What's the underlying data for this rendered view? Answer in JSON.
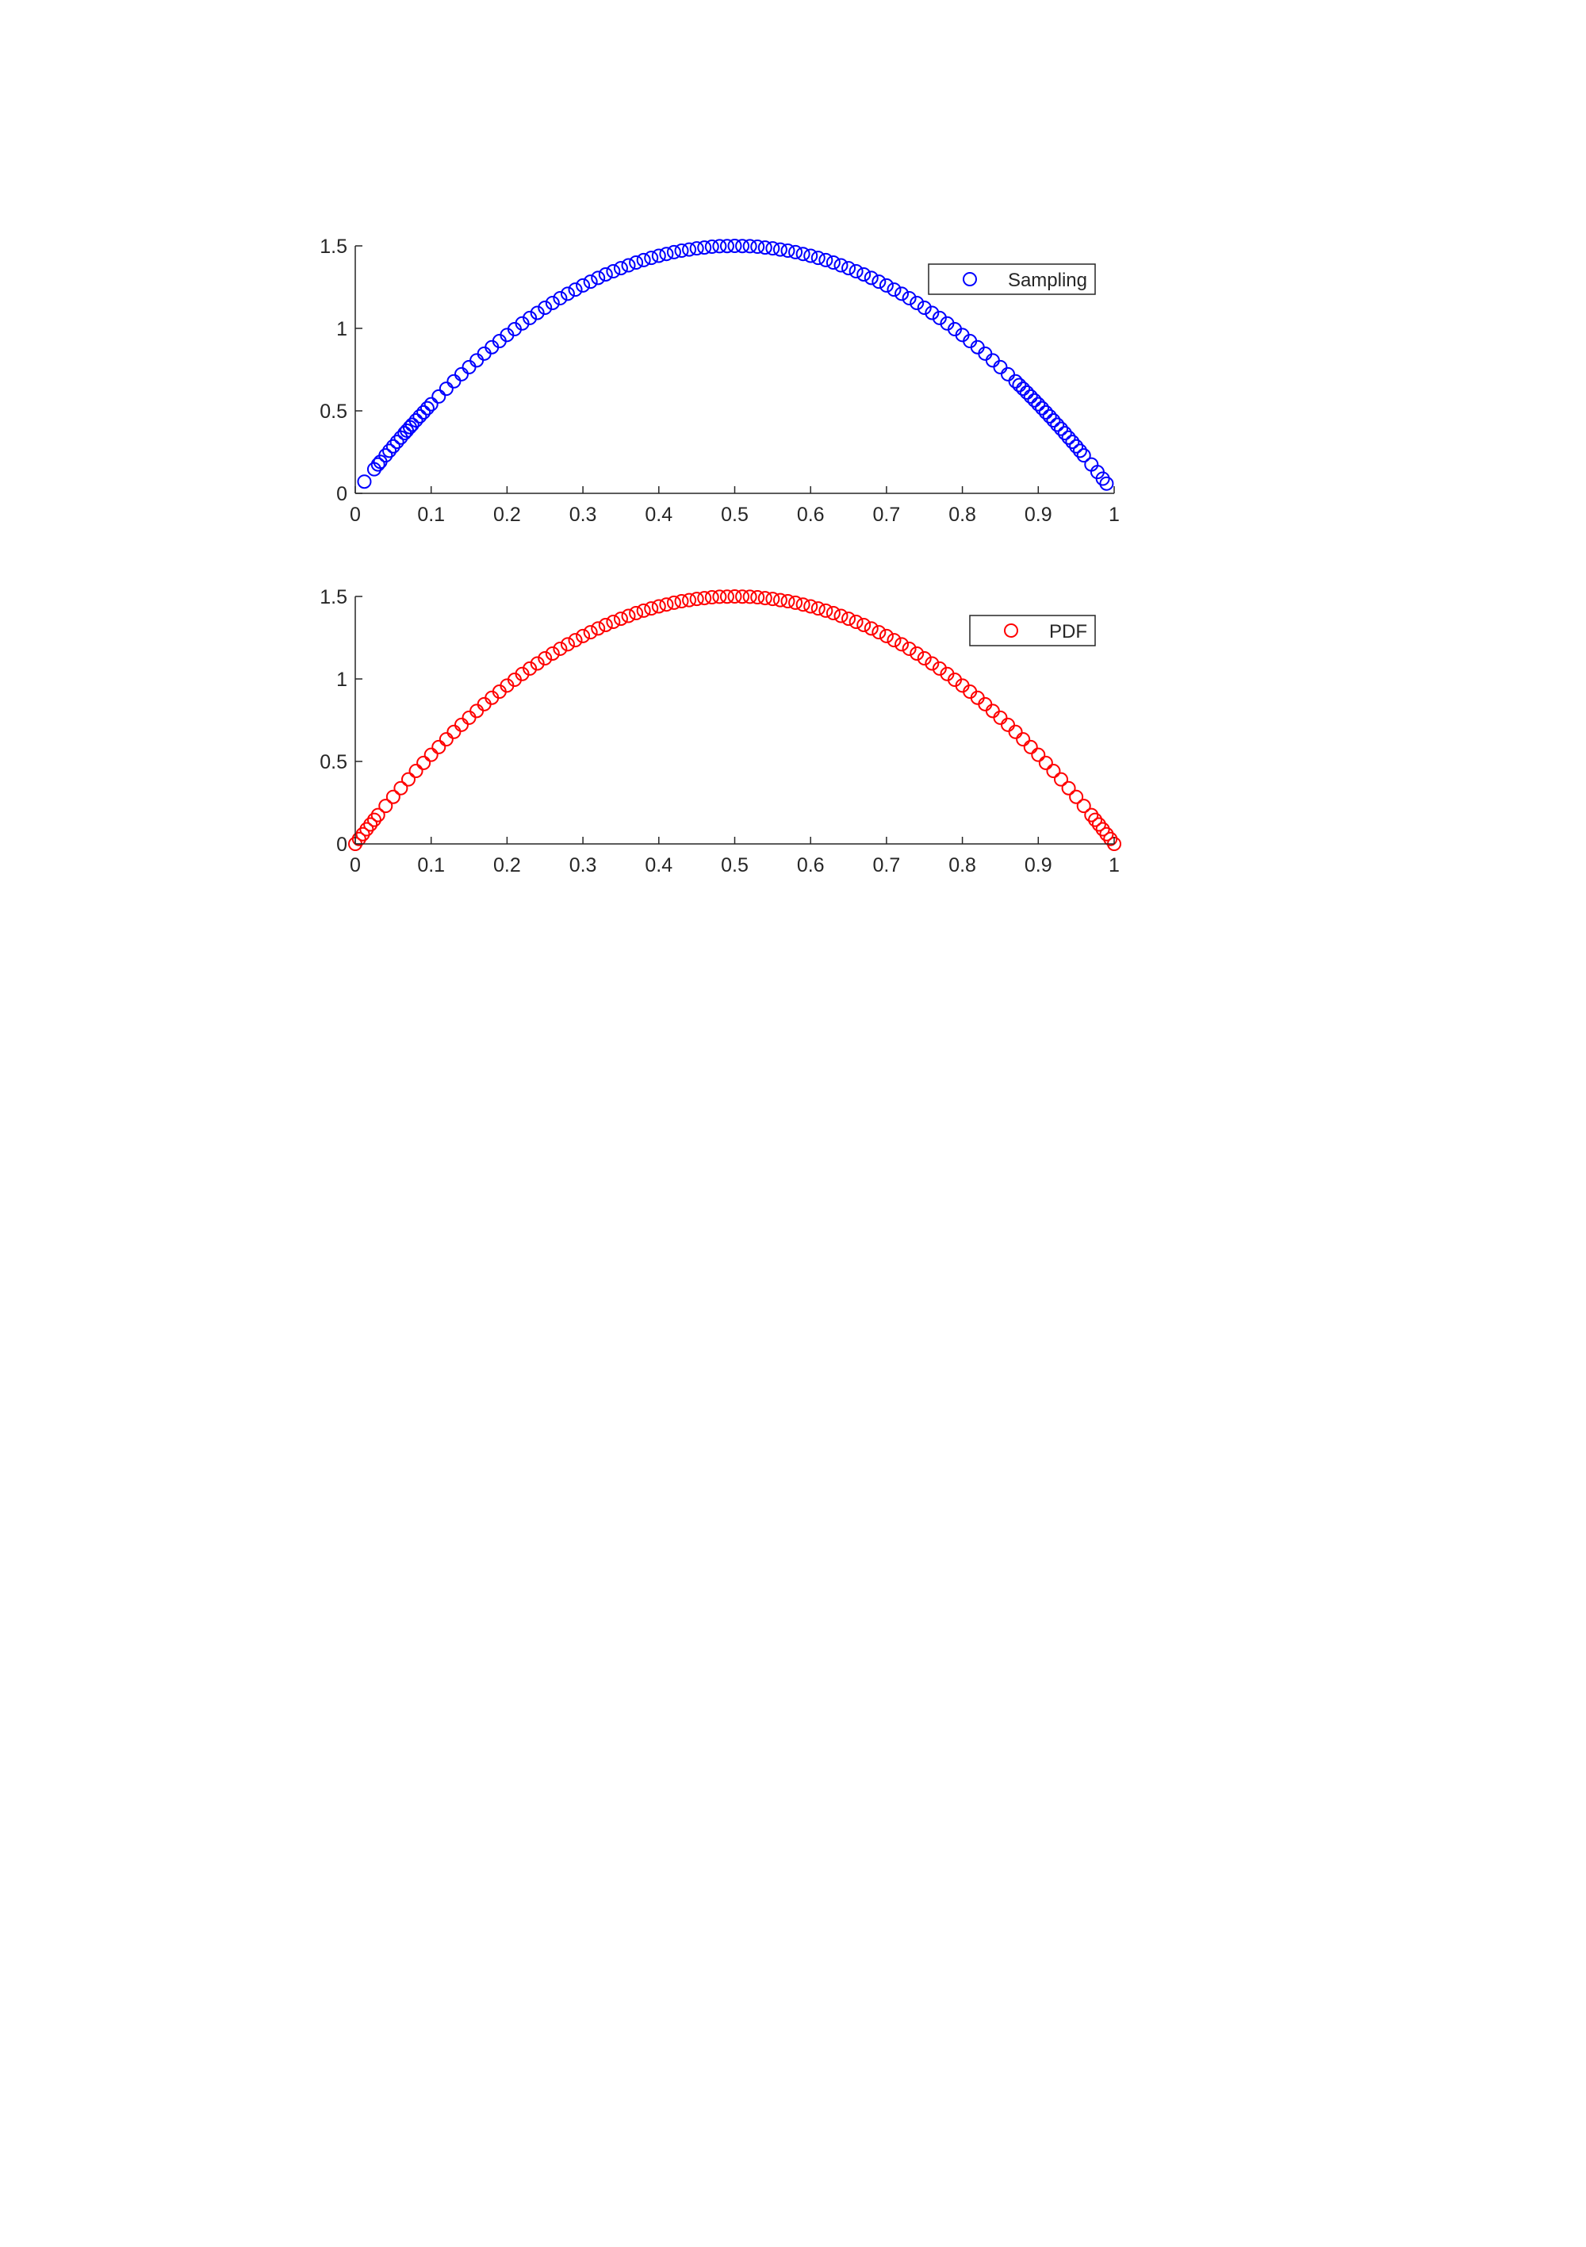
{
  "chart_data": [
    {
      "type": "scatter",
      "title": "",
      "xlabel": "",
      "ylabel": "",
      "xlim": [
        0,
        1
      ],
      "ylim": [
        0,
        1.5
      ],
      "x_ticks": [
        0,
        0.1,
        0.2,
        0.3,
        0.4,
        0.5,
        0.6,
        0.7,
        0.8,
        0.9,
        1
      ],
      "y_ticks": [
        0,
        0.5,
        1,
        1.5
      ],
      "x_tick_labels": [
        "0",
        "0.1",
        "0.2",
        "0.3",
        "0.4",
        "0.5",
        "0.6",
        "0.7",
        "0.8",
        "0.9",
        "1"
      ],
      "y_tick_labels": [
        "0",
        "0.5",
        "1",
        "1.5"
      ],
      "grid": false,
      "legend": {
        "placement": "top-right",
        "entries": [
          "Sampling"
        ]
      },
      "series": [
        {
          "name": "Sampling",
          "color": "#0000ff",
          "marker": "open-circle",
          "function": "6x(1-x)",
          "x": [
            0.012,
            0.025,
            0.03,
            0.033,
            0.04,
            0.045,
            0.05,
            0.055,
            0.06,
            0.065,
            0.068,
            0.072,
            0.075,
            0.08,
            0.085,
            0.09,
            0.095,
            0.1,
            0.11,
            0.12,
            0.13,
            0.14,
            0.15,
            0.16,
            0.17,
            0.18,
            0.19,
            0.2,
            0.21,
            0.22,
            0.23,
            0.24,
            0.25,
            0.26,
            0.27,
            0.28,
            0.29,
            0.3,
            0.31,
            0.32,
            0.33,
            0.34,
            0.35,
            0.36,
            0.37,
            0.38,
            0.39,
            0.4,
            0.41,
            0.42,
            0.43,
            0.44,
            0.45,
            0.46,
            0.47,
            0.48,
            0.49,
            0.5,
            0.51,
            0.52,
            0.53,
            0.54,
            0.55,
            0.56,
            0.57,
            0.58,
            0.59,
            0.6,
            0.61,
            0.62,
            0.63,
            0.64,
            0.65,
            0.66,
            0.67,
            0.68,
            0.69,
            0.7,
            0.71,
            0.72,
            0.73,
            0.74,
            0.75,
            0.76,
            0.77,
            0.78,
            0.79,
            0.8,
            0.81,
            0.82,
            0.83,
            0.84,
            0.85,
            0.86,
            0.87,
            0.875,
            0.88,
            0.885,
            0.89,
            0.895,
            0.9,
            0.905,
            0.91,
            0.915,
            0.92,
            0.925,
            0.93,
            0.935,
            0.94,
            0.945,
            0.95,
            0.955,
            0.96,
            0.97,
            0.978,
            0.985,
            0.99
          ],
          "y": [
            0.071,
            0.146,
            0.175,
            0.191,
            0.23,
            0.258,
            0.285,
            0.312,
            0.338,
            0.365,
            0.38,
            0.401,
            0.416,
            0.442,
            0.467,
            0.491,
            0.516,
            0.54,
            0.587,
            0.634,
            0.679,
            0.722,
            0.765,
            0.806,
            0.847,
            0.886,
            0.923,
            0.96,
            0.995,
            1.03,
            1.063,
            1.094,
            1.125,
            1.154,
            1.183,
            1.21,
            1.235,
            1.26,
            1.283,
            1.306,
            1.327,
            1.346,
            1.365,
            1.382,
            1.399,
            1.414,
            1.427,
            1.44,
            1.451,
            1.462,
            1.471,
            1.478,
            1.485,
            1.49,
            1.495,
            1.498,
            1.499,
            1.5,
            1.499,
            1.498,
            1.495,
            1.49,
            1.485,
            1.478,
            1.471,
            1.462,
            1.451,
            1.44,
            1.427,
            1.414,
            1.399,
            1.382,
            1.365,
            1.346,
            1.327,
            1.306,
            1.283,
            1.26,
            1.235,
            1.21,
            1.183,
            1.154,
            1.125,
            1.094,
            1.063,
            1.03,
            0.995,
            0.96,
            0.923,
            0.886,
            0.847,
            0.806,
            0.765,
            0.722,
            0.679,
            0.656,
            0.634,
            0.611,
            0.587,
            0.564,
            0.54,
            0.516,
            0.491,
            0.467,
            0.442,
            0.416,
            0.391,
            0.365,
            0.338,
            0.312,
            0.285,
            0.258,
            0.23,
            0.175,
            0.129,
            0.089,
            0.059
          ]
        }
      ]
    },
    {
      "type": "scatter",
      "title": "",
      "xlabel": "",
      "ylabel": "",
      "xlim": [
        0,
        1
      ],
      "ylim": [
        0,
        1.5
      ],
      "x_ticks": [
        0,
        0.1,
        0.2,
        0.3,
        0.4,
        0.5,
        0.6,
        0.7,
        0.8,
        0.9,
        1
      ],
      "y_ticks": [
        0,
        0.5,
        1,
        1.5
      ],
      "x_tick_labels": [
        "0",
        "0.1",
        "0.2",
        "0.3",
        "0.4",
        "0.5",
        "0.6",
        "0.7",
        "0.8",
        "0.9",
        "1"
      ],
      "y_tick_labels": [
        "0",
        "0.5",
        "1",
        "1.5"
      ],
      "grid": false,
      "legend": {
        "placement": "top-right",
        "entries": [
          "PDF"
        ]
      },
      "series": [
        {
          "name": "PDF",
          "color": "#ff0000",
          "marker": "open-circle",
          "function": "6x(1-x)",
          "x": [
            0,
            0.005,
            0.01,
            0.015,
            0.02,
            0.025,
            0.03,
            0.04,
            0.05,
            0.06,
            0.07,
            0.08,
            0.09,
            0.1,
            0.11,
            0.12,
            0.13,
            0.14,
            0.15,
            0.16,
            0.17,
            0.18,
            0.19,
            0.2,
            0.21,
            0.22,
            0.23,
            0.24,
            0.25,
            0.26,
            0.27,
            0.28,
            0.29,
            0.3,
            0.31,
            0.32,
            0.33,
            0.34,
            0.35,
            0.36,
            0.37,
            0.38,
            0.39,
            0.4,
            0.41,
            0.42,
            0.43,
            0.44,
            0.45,
            0.46,
            0.47,
            0.48,
            0.49,
            0.5,
            0.51,
            0.52,
            0.53,
            0.54,
            0.55,
            0.56,
            0.57,
            0.58,
            0.59,
            0.6,
            0.61,
            0.62,
            0.63,
            0.64,
            0.65,
            0.66,
            0.67,
            0.68,
            0.69,
            0.7,
            0.71,
            0.72,
            0.73,
            0.74,
            0.75,
            0.76,
            0.77,
            0.78,
            0.79,
            0.8,
            0.81,
            0.82,
            0.83,
            0.84,
            0.85,
            0.86,
            0.87,
            0.88,
            0.89,
            0.9,
            0.91,
            0.92,
            0.93,
            0.94,
            0.95,
            0.96,
            0.97,
            0.975,
            0.98,
            0.985,
            0.99,
            0.995,
            1
          ],
          "y": [
            0,
            0.03,
            0.059,
            0.089,
            0.118,
            0.146,
            0.175,
            0.23,
            0.285,
            0.338,
            0.391,
            0.442,
            0.491,
            0.54,
            0.587,
            0.634,
            0.679,
            0.722,
            0.765,
            0.806,
            0.847,
            0.886,
            0.923,
            0.96,
            0.995,
            1.03,
            1.063,
            1.094,
            1.125,
            1.154,
            1.183,
            1.21,
            1.235,
            1.26,
            1.283,
            1.306,
            1.327,
            1.346,
            1.365,
            1.382,
            1.399,
            1.414,
            1.427,
            1.44,
            1.451,
            1.462,
            1.471,
            1.478,
            1.485,
            1.49,
            1.495,
            1.498,
            1.499,
            1.5,
            1.499,
            1.498,
            1.495,
            1.49,
            1.485,
            1.478,
            1.471,
            1.462,
            1.451,
            1.44,
            1.427,
            1.414,
            1.399,
            1.382,
            1.365,
            1.346,
            1.327,
            1.306,
            1.283,
            1.26,
            1.235,
            1.21,
            1.183,
            1.154,
            1.125,
            1.094,
            1.063,
            1.03,
            0.995,
            0.96,
            0.923,
            0.886,
            0.847,
            0.806,
            0.765,
            0.722,
            0.679,
            0.634,
            0.587,
            0.54,
            0.491,
            0.442,
            0.391,
            0.338,
            0.285,
            0.23,
            0.175,
            0.146,
            0.118,
            0.089,
            0.059,
            0.03,
            0
          ]
        }
      ]
    }
  ]
}
